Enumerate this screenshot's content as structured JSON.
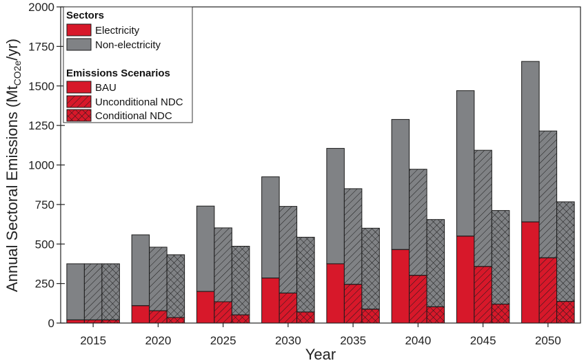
{
  "chart_data": {
    "type": "bar",
    "subtype": "grouped-stacked",
    "xlabel": "Year",
    "ylabel_main": "Annual Sectoral Emissions (Mt",
    "ylabel_sub": "CO2e",
    "ylabel_end": "/yr)",
    "ylim": [
      0,
      2000
    ],
    "yticks": [
      "0",
      "250",
      "500",
      "750",
      "1000",
      "1250",
      "1500",
      "1750",
      "2000"
    ],
    "ytick_values": [
      0,
      250,
      500,
      750,
      1000,
      1250,
      1500,
      1750,
      2000
    ],
    "categories": [
      "2015",
      "2020",
      "2025",
      "2030",
      "2035",
      "2040",
      "2045",
      "2050"
    ],
    "stack_components": [
      "Electricity",
      "Non-electricity"
    ],
    "series": [
      {
        "name": "BAU",
        "pattern": "solid",
        "electricity": [
          20,
          110,
          200,
          285,
          375,
          465,
          550,
          640
        ],
        "total": [
          375,
          558,
          740,
          925,
          1105,
          1288,
          1470,
          1655
        ]
      },
      {
        "name": "Unconditional NDC",
        "pattern": "hatch",
        "electricity": [
          20,
          78,
          135,
          190,
          245,
          302,
          358,
          413
        ],
        "total": [
          375,
          480,
          602,
          738,
          850,
          973,
          1093,
          1215
        ]
      },
      {
        "name": "Conditional NDC",
        "pattern": "crosshatch",
        "electricity": [
          20,
          35,
          52,
          70,
          88,
          103,
          120,
          137
        ],
        "total": [
          375,
          432,
          486,
          543,
          600,
          655,
          712,
          767
        ]
      }
    ],
    "legend": {
      "placement": "top-left",
      "sectors_title": "Sectors",
      "sectors": [
        {
          "label": "Electricity",
          "color": "#d7182a"
        },
        {
          "label": "Non-electricity",
          "color": "#808285"
        }
      ],
      "scenarios_title": "Emissions Scenarios",
      "scenarios": [
        {
          "label": "BAU",
          "pattern": "solid"
        },
        {
          "label": "Unconditional NDC",
          "pattern": "hatch"
        },
        {
          "label": "Conditional NDC",
          "pattern": "crosshatch"
        }
      ]
    },
    "colors": {
      "electricity": "#d7182a",
      "non_electricity": "#808285"
    },
    "grid": false
  }
}
